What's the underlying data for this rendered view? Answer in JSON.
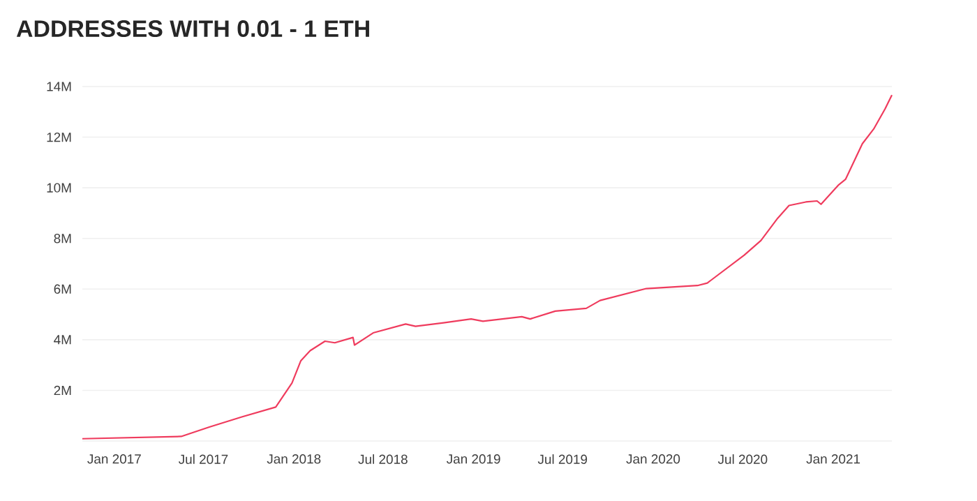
{
  "chart_data": {
    "type": "line",
    "title": "ADDRESSES WITH 0.01 - 1 ETH",
    "x": [
      "2016-10-28",
      "2017-05-17",
      "2017-07-13",
      "2017-09-17",
      "2017-11-25",
      "2017-12-28",
      "2018-01-15",
      "2018-02-03",
      "2018-03-05",
      "2018-03-25",
      "2018-05-01",
      "2018-05-04",
      "2018-06-11",
      "2018-08-16",
      "2018-09-05",
      "2018-11-01",
      "2018-12-27",
      "2019-01-20",
      "2019-04-09",
      "2019-04-26",
      "2019-06-16",
      "2019-08-18",
      "2019-09-15",
      "2019-12-18",
      "2020-03-31",
      "2020-04-20",
      "2020-07-04",
      "2020-08-07",
      "2020-09-10",
      "2020-10-03",
      "2020-11-06",
      "2020-11-29",
      "2020-12-07",
      "2021-01-12",
      "2021-01-26",
      "2021-03-01",
      "2021-03-24",
      "2021-04-16",
      "2021-04-30"
    ],
    "series": [
      {
        "color": "#ef3b5d",
        "values": [
          90000,
          180000,
          550000,
          950000,
          1340000,
          2290000,
          3170000,
          3570000,
          3940000,
          3880000,
          4090000,
          3790000,
          4270000,
          4620000,
          4530000,
          4670000,
          4820000,
          4730000,
          4910000,
          4820000,
          5130000,
          5240000,
          5550000,
          6020000,
          6140000,
          6240000,
          7340000,
          7920000,
          8800000,
          9300000,
          9440000,
          9480000,
          9350000,
          10120000,
          10340000,
          11740000,
          12320000,
          13110000,
          13660000
        ]
      }
    ],
    "xlim": [
      "2016-10-28",
      "2021-04-30"
    ],
    "xticks": [
      {
        "value": "2017-01-01",
        "label": "Jan 2017"
      },
      {
        "value": "2017-07-01",
        "label": "Jul 2017"
      },
      {
        "value": "2018-01-01",
        "label": "Jan 2018"
      },
      {
        "value": "2018-07-01",
        "label": "Jul 2018"
      },
      {
        "value": "2019-01-01",
        "label": "Jan 2019"
      },
      {
        "value": "2019-07-01",
        "label": "Jul 2019"
      },
      {
        "value": "2020-01-01",
        "label": "Jan 2020"
      },
      {
        "value": "2020-07-01",
        "label": "Jul 2020"
      },
      {
        "value": "2021-01-01",
        "label": "Jan 2021"
      }
    ],
    "ylim": [
      0,
      14000000
    ],
    "yticks": [
      {
        "value": 0,
        "label": null
      },
      {
        "value": 2000000,
        "label": "2M"
      },
      {
        "value": 4000000,
        "label": "4M"
      },
      {
        "value": 6000000,
        "label": "6M"
      },
      {
        "value": 8000000,
        "label": "8M"
      },
      {
        "value": 10000000,
        "label": "10M"
      },
      {
        "value": 12000000,
        "label": "12M"
      },
      {
        "value": 14000000,
        "label": "14M"
      }
    ],
    "grid": "y",
    "marker": "none",
    "line_style": "solid"
  }
}
